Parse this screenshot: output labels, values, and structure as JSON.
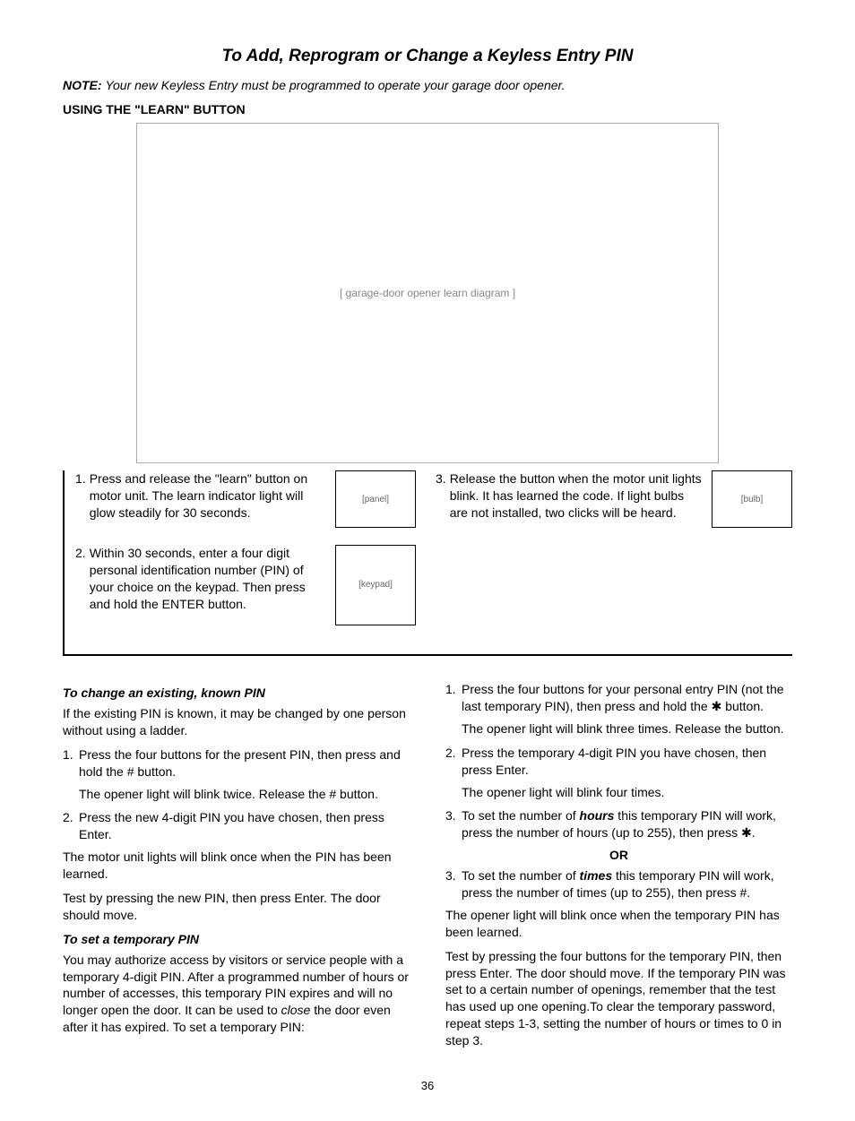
{
  "title": "To Add, Reprogram or Change a Keyless Entry PIN",
  "note": {
    "label": "NOTE:",
    "text": "Your new Keyless Entry must be programmed to operate your garage door opener."
  },
  "learn_heading": "USING THE \"LEARN\" BUTTON",
  "diagram_alt": "[ garage-door opener learn diagram ]",
  "thumbs": {
    "panel": "[panel]",
    "keypad": "[keypad]",
    "bulb": "[bulb]"
  },
  "learn_steps": {
    "s1": {
      "n": "1.",
      "t": "Press and release the \"learn\" button on motor unit. The learn indicator light will glow steadily for 30 seconds."
    },
    "s2": {
      "n": "2.",
      "t": "Within 30 seconds, enter a four digit personal identification number (PIN) of your choice on the keypad. Then press and hold the ENTER button."
    },
    "s3": {
      "n": "3.",
      "t": "Release the button when the motor unit lights blink. It has learned the code. If light bulbs are not installed, two clicks will be heard."
    }
  },
  "change": {
    "heading": "To change an existing, known PIN",
    "intro": "If the existing PIN is known, it may be changed by one person without using a ladder.",
    "s1n": "1.",
    "s1t": "Press the four buttons for the present PIN, then press and hold the # button.",
    "s1b": "The opener light will blink twice. Release the # button.",
    "s2n": "2.",
    "s2t": "Press the new 4-digit PIN you have chosen, then press Enter.",
    "after": "The motor unit lights will blink once when the PIN has been learned.",
    "test": "Test by pressing the new PIN, then press Enter. The door should move."
  },
  "temp": {
    "heading": "To set a temporary PIN",
    "intro_a": "You may authorize access by visitors or service people with a temporary 4-digit PIN. After a programmed number of hours or number of accesses, this temporary PIN expires and will no longer open the door. It can be used to ",
    "intro_close": "close",
    "intro_b": " the door even after it has expired. To set a temporary PIN:",
    "r1n": "1.",
    "r1t": "Press the four buttons for your personal entry PIN (not the last temporary PIN), then press and hold the ✱ button.",
    "r1b": "The opener light will blink three times. Release the button.",
    "r2n": "2.",
    "r2t": "Press the temporary 4-digit PIN you have chosen, then press Enter.",
    "r2b": "The opener light will blink four times.",
    "r3n": "3.",
    "r3a": "To set the number of ",
    "r3hours": "hours",
    "r3b": " this temporary PIN will work, press the number of hours (up to 255), then press ✱.",
    "or": "OR",
    "r3cn": "3.",
    "r3c_a": "To set the number of ",
    "r3times": "times",
    "r3c_b": " this temporary PIN will work, press the number of times (up to 255), then press #.",
    "after": "The opener light will blink once when the temporary PIN has been learned.",
    "test": "Test by pressing the four buttons for the temporary PIN, then press Enter. The door should move. If the temporary PIN was set to a certain number of openings, remember that the test has used up one opening.To clear the temporary password, repeat steps 1-3, setting the number of hours or times to 0 in step 3."
  },
  "page_number": "36",
  "colors": {
    "text": "#000000",
    "bg": "#ffffff",
    "border": "#000000"
  }
}
